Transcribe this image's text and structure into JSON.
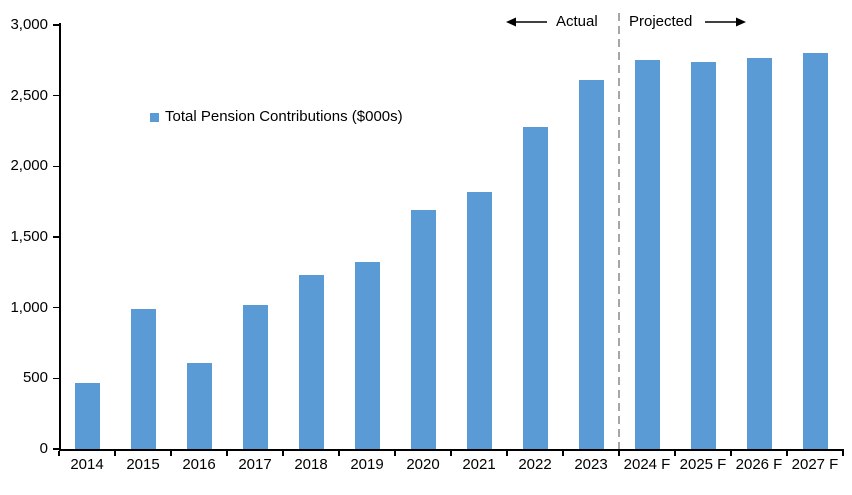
{
  "chart_data": {
    "type": "bar",
    "title": "",
    "xlabel": "",
    "ylabel": "",
    "categories": [
      "2014",
      "2015",
      "2016",
      "2017",
      "2018",
      "2019",
      "2020",
      "2021",
      "2022",
      "2023",
      "2024 F",
      "2025 F",
      "2026 F",
      "2027 F"
    ],
    "series": [
      {
        "name": "Total Pension Contributions ($000s)",
        "values": [
          470,
          990,
          610,
          1020,
          1230,
          1320,
          1690,
          1820,
          2280,
          2610,
          2750,
          2740,
          2770,
          2800
        ]
      }
    ],
    "ylim": [
      0,
      3000
    ],
    "y_tick_step": 500,
    "y_tick_labels": [
      "0",
      "500",
      "1,000",
      "1,500",
      "2,000",
      "2,500",
      "3,000"
    ],
    "grid": false,
    "legend_position": "inside-top-left",
    "annotations": {
      "actual_label": "Actual",
      "projected_label": "Projected",
      "separator_before_category": "2024 F",
      "first_projected_index": 10
    }
  },
  "colors": {
    "bar": "#5B9BD5",
    "axis": "#000000",
    "separator_line": "#A6A6A6",
    "text": "#000000",
    "background": "#FFFFFF"
  }
}
